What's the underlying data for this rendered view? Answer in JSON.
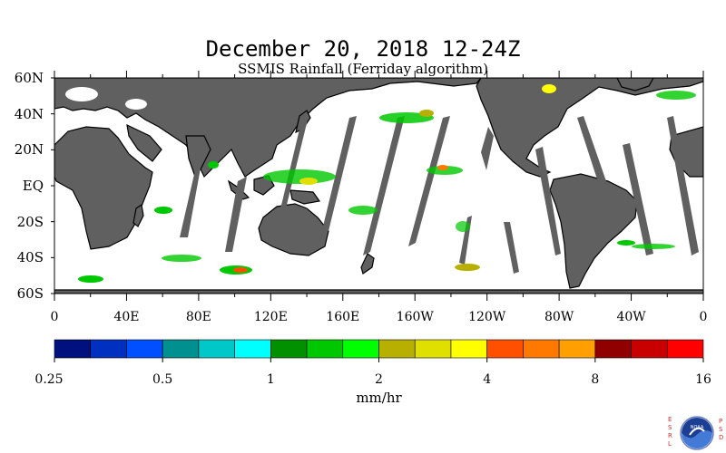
{
  "title": "December 20, 2018 12-24Z",
  "subtitle": "SSMIS Rainfall (Ferriday algorithm)",
  "lat_labels": [
    "60N",
    "40N",
    "20N",
    "EQ",
    "20S",
    "40S",
    "60S"
  ],
  "lat_values": [
    60,
    40,
    20,
    0,
    -20,
    -40,
    -60
  ],
  "lon_labels": [
    "0",
    "40E",
    "80E",
    "120E",
    "160E",
    "160W",
    "120W",
    "80W",
    "40W",
    "0"
  ],
  "lon_values": [
    0,
    40,
    80,
    120,
    160,
    200,
    240,
    280,
    320,
    360
  ],
  "colorbar": {
    "unit": "mm/hr",
    "tick_labels": [
      "0.25",
      "0.5",
      "1",
      "2",
      "4",
      "8",
      "16"
    ],
    "colors": [
      "#00107e",
      "#0030c0",
      "#0050ff",
      "#009090",
      "#00c8c8",
      "#00ffff",
      "#009000",
      "#00c800",
      "#00ff00",
      "#b8b000",
      "#e0e000",
      "#ffff00",
      "#ff5000",
      "#ff7800",
      "#ffa000",
      "#900000",
      "#c80000",
      "#ff0000"
    ]
  },
  "logo": {
    "left_letters": [
      "E",
      "S",
      "R",
      "L"
    ],
    "right_letters": [
      "P",
      "S",
      "D"
    ],
    "emblem_text": "NOAA"
  },
  "map_colors": {
    "land": "#606060",
    "ocean": "#ffffff",
    "no_data_swath": "#606060"
  }
}
